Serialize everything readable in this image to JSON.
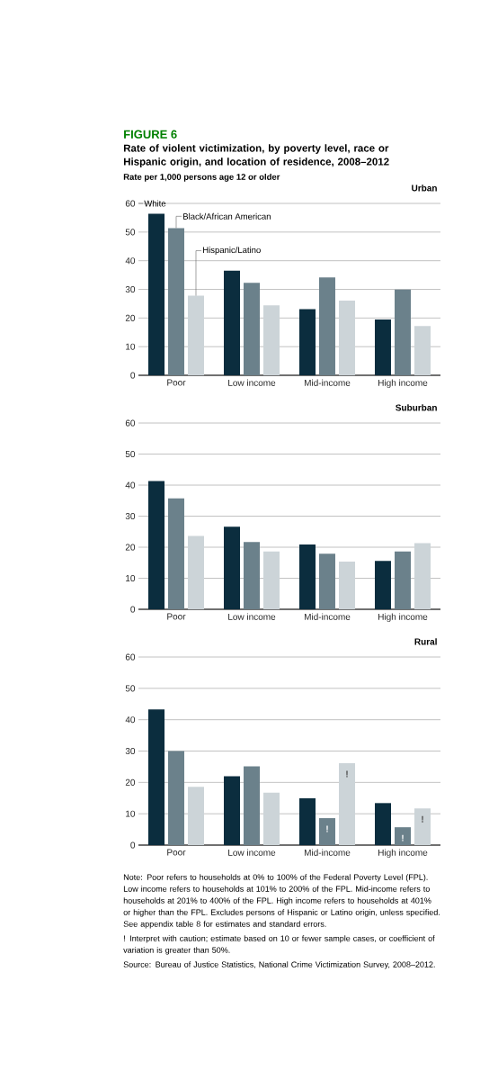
{
  "chart_data": [
    {
      "type": "bar",
      "title": "Urban",
      "ylabel": "Rate per 1,000 persons age 12 or older",
      "annotations": [
        "FIGURE 6",
        "Rate of violent victimization, by poverty level, race or Hispanic origin, and location of residence, 2008–2012"
      ],
      "categories": [
        "Poor",
        "Low income",
        "Mid-income",
        "High income"
      ],
      "series": [
        {
          "name": "White",
          "color": "#0b2d3e",
          "values": [
            56.4,
            36.5,
            23.1,
            19.5
          ]
        },
        {
          "name": "Black/African American",
          "color": "#6b818b",
          "values": [
            51.4,
            32.3,
            34.2,
            29.9
          ]
        },
        {
          "name": "Hispanic/Latino",
          "color": "#ccd4d8",
          "values": [
            27.8,
            24.4,
            26.1,
            17.2
          ]
        }
      ],
      "ylim": [
        0,
        60
      ],
      "yticks": [
        0,
        10,
        20,
        30,
        40,
        50,
        60
      ],
      "grid": "y"
    },
    {
      "type": "bar",
      "title": "Suburban",
      "categories": [
        "Poor",
        "Low income",
        "Mid-income",
        "High income"
      ],
      "series": [
        {
          "color": "#0b2d3e",
          "values": [
            41.3,
            26.6,
            20.9,
            15.6
          ]
        },
        {
          "color": "#6b818b",
          "values": [
            35.7,
            21.7,
            17.9,
            18.6
          ]
        },
        {
          "color": "#ccd4d8",
          "values": [
            23.6,
            18.6,
            15.4,
            21.3
          ]
        }
      ],
      "ylim": [
        0,
        60
      ],
      "yticks": [
        0,
        10,
        20,
        30,
        40,
        50,
        60
      ],
      "grid": "y"
    },
    {
      "type": "bar",
      "title": "Rural",
      "annotations": [
        "Note: Poor refers to households at 0% to 100% of the Federal Poverty Level (FPL). Low income refers to households at 101% to 200% of the FPL. Mid-income refers to households at 201% to 400% of the FPL. High income refers to households at 401% or higher than the FPL. Excludes persons of Hispanic or Latino origin, unless specified. See appendix table 8 for estimates and standard errors.",
        "! Interpret with caution; estimate based on 10 or fewer sample cases, or coefficient of variation is greater than 50%.",
        "Source: Bureau of Justice Statistics, National Crime Victimization Survey, 2008–2012."
      ],
      "categories": [
        "Poor",
        "Low income",
        "Mid-income",
        "High income"
      ],
      "series": [
        {
          "color": "#0b2d3e",
          "values": [
            43.3,
            22.0,
            14.9,
            13.4
          ]
        },
        {
          "color": "#6b818b",
          "values": [
            30.0,
            25.1,
            8.6,
            5.7
          ],
          "value_labels": [
            null,
            null,
            "!",
            "!"
          ]
        },
        {
          "color": "#ccd4d8",
          "values": [
            18.6,
            16.7,
            26.1,
            11.7
          ],
          "value_labels": [
            null,
            null,
            "!",
            "!"
          ]
        }
      ],
      "ylim": [
        0,
        60
      ],
      "yticks": [
        0,
        10,
        20,
        30,
        40,
        50,
        60
      ],
      "grid": "y"
    }
  ]
}
